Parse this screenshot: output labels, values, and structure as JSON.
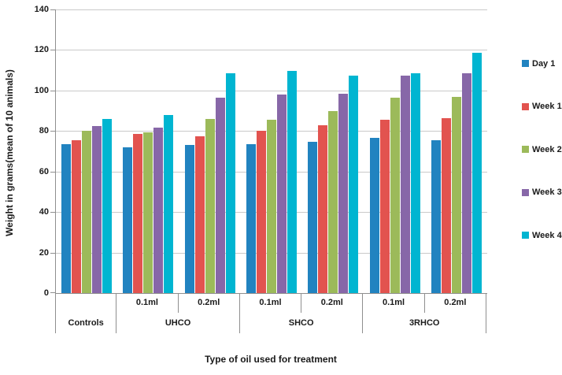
{
  "chart_data": {
    "type": "bar",
    "title": "",
    "ylabel": "Weight in grams(mean of 10 animals)",
    "xlabel": "Type of oil used for treatment",
    "ylim": [
      0,
      140
    ],
    "ytick_interval": 20,
    "ytick_labels": [
      "0",
      "20",
      "40",
      "60",
      "80",
      "100",
      "120",
      "140"
    ],
    "grid": true,
    "legend_position": "right",
    "legend_entries": [
      "Day 1",
      "Week 1",
      "Week 2",
      "Week 3",
      "Week 4"
    ],
    "categories": [
      {
        "oil": "Controls",
        "dose": ""
      },
      {
        "oil": "UHCO",
        "dose": "0.1ml"
      },
      {
        "oil": "UHCO",
        "dose": "0.2ml"
      },
      {
        "oil": "SHCO",
        "dose": "0.1ml"
      },
      {
        "oil": "SHCO",
        "dose": "0.2ml"
      },
      {
        "oil": "3RHCO",
        "dose": "0.1ml"
      },
      {
        "oil": "3RHCO",
        "dose": "0.2ml"
      }
    ],
    "oil_axis_groups": [
      {
        "label": "Controls",
        "span": 1
      },
      {
        "label": "UHCO",
        "span": 2
      },
      {
        "label": "SHCO",
        "span": 2
      },
      {
        "label": "3RHCO",
        "span": 2
      }
    ],
    "series": [
      {
        "name": "Day 1",
        "color": "#2183c0",
        "values": [
          73.5,
          72.0,
          73.0,
          73.5,
          74.5,
          76.5,
          75.5
        ]
      },
      {
        "name": "Week 1",
        "color": "#e2534f",
        "values": [
          75.5,
          78.5,
          77.5,
          80.0,
          83.0,
          85.5,
          86.5
        ]
      },
      {
        "name": "Week 2",
        "color": "#9cba5a",
        "values": [
          80.0,
          79.5,
          86.0,
          85.5,
          90.0,
          96.5,
          97.0
        ]
      },
      {
        "name": "Week 3",
        "color": "#8767a8",
        "values": [
          82.5,
          81.5,
          96.5,
          98.0,
          98.5,
          107.5,
          108.5
        ]
      },
      {
        "name": "Week 4",
        "color": "#00b5d1",
        "values": [
          86.0,
          88.0,
          108.5,
          109.5,
          107.5,
          108.5,
          118.5
        ]
      }
    ],
    "colors": {
      "gridline": "#c9c9c9",
      "axis": "#8f8f8f",
      "text": "#1a1a1a"
    }
  }
}
